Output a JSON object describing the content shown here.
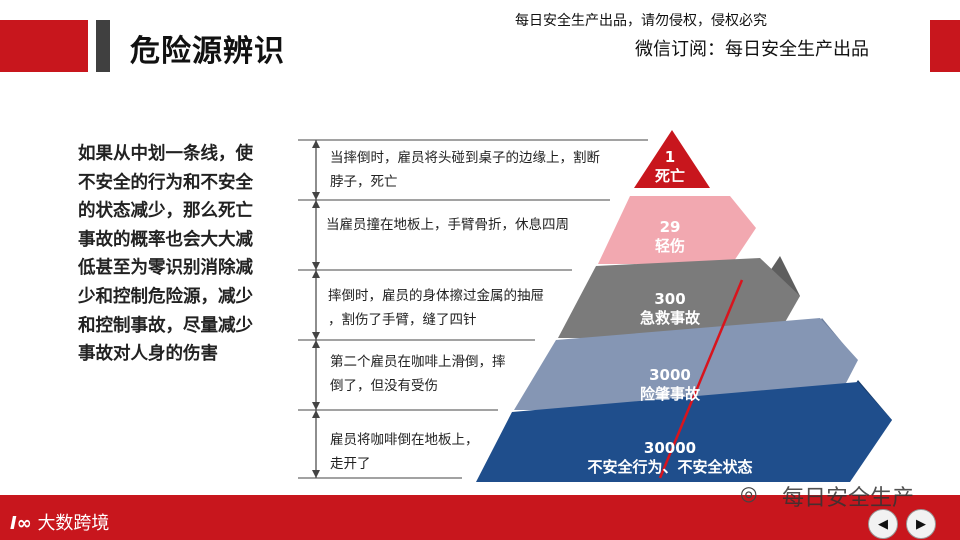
{
  "header": {
    "title": "危险源辨识",
    "copyright_notice": "每日安全生产出品，请勿侵权，侵权必究",
    "subscribe_note": "微信订阅：每日安全生产出品"
  },
  "main": {
    "left_text": "如果从中划一条线，使不安全的行为和不安全的状态减少，那么死亡事故的概率也会大大减低甚至为零识别消除减少和控制危险源，减少和控制事故，尽量减少事故对人身的伤害",
    "pyramid": [
      {
        "number": "1",
        "label": "死亡",
        "color": "#c8161d"
      },
      {
        "number": "29",
        "label": "轻伤",
        "color": "#f2a8b0"
      },
      {
        "number": "300",
        "label": "急救事故",
        "color": "#7b7b7b"
      },
      {
        "number": "3000",
        "label": "险肇事故",
        "color": "#8596b4"
      },
      {
        "number": "30000",
        "label": "不安全行为、不安全状态",
        "color": "#1f4e8c"
      }
    ],
    "descriptions": [
      {
        "line1": "当摔倒时，雇员将头碰到桌子的边缘上，割断",
        "line2": "脖子，死亡"
      },
      {
        "line1": "当雇员撞在地板上，手臂骨折，休息四周",
        "line2": ""
      },
      {
        "line1": "摔倒时，雇员的身体擦过金属的抽屉",
        "line2": "，割伤了手臂，缝了四针"
      },
      {
        "line1": "第二个雇员在咖啡上滑倒，摔",
        "line2": "倒了，但没有受伤"
      },
      {
        "line1": "雇员将咖啡倒在地板上，",
        "line2": "走开了"
      }
    ]
  },
  "footer": {
    "logo_text": "大数跨境",
    "watermark": "每日安全生产",
    "prev_icon": "arrow-left-icon",
    "next_icon": "arrow-right-icon"
  }
}
